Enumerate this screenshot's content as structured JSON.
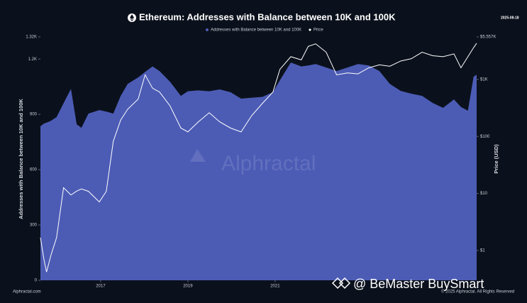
{
  "chart_data": {
    "type": "area",
    "title": "Ethereum: Addresses with Balance between 10K and 100K",
    "date": "2025-08-18",
    "ylabel": "Addresses with Balance between 10K and 100K",
    "y2label": "Price (USD)",
    "watermark": "Alphractal",
    "source": "Alphractal.com",
    "copyright": "© 2025 Alphractal. All Rights Reserved",
    "overlay_text": "@ BeMaster BuySmart",
    "x": [
      2015.62,
      2015.7,
      2015.76,
      2015.86,
      2015.99,
      2016.15,
      2016.32,
      2016.45,
      2016.56,
      2016.72,
      2016.97,
      2017.13,
      2017.29,
      2017.46,
      2017.62,
      2017.86,
      2018.02,
      2018.19,
      2018.35,
      2018.59,
      2018.84,
      2019.0,
      2019.24,
      2019.49,
      2019.73,
      2019.98,
      2020.22,
      2020.46,
      2020.71,
      2020.95,
      2021.11,
      2021.36,
      2021.6,
      2021.76,
      2021.93,
      2022.17,
      2022.41,
      2022.66,
      2022.9,
      2023.15,
      2023.39,
      2023.63,
      2023.88,
      2024.12,
      2024.37,
      2024.61,
      2024.85,
      2025.1,
      2025.26,
      2025.42,
      2025.55,
      2025.62
    ],
    "series": [
      {
        "name": "Addresses with Balance between 10K and 100K",
        "color": "#4c5cb5",
        "axis": "y",
        "values": [
          835,
          850,
          855,
          865,
          885,
          960,
          1038,
          846,
          827,
          904,
          923,
          915,
          904,
          1000,
          1065,
          1100,
          1130,
          1160,
          1135,
          1077,
          1000,
          1025,
          1030,
          1025,
          1035,
          1020,
          985,
          990,
          995,
          1020,
          1085,
          1181,
          1160,
          1165,
          1173,
          1154,
          1135,
          1154,
          1173,
          1165,
          1135,
          1065,
          1027,
          1012,
          1000,
          962,
          935,
          981,
          940,
          920,
          1104,
          1115
        ]
      },
      {
        "name": "Price",
        "color": "#ffffff",
        "axis": "y2",
        "values": [
          1.68,
          0.7,
          0.42,
          0.82,
          1.68,
          12.6,
          9.4,
          11,
          12,
          10.9,
          7.1,
          10.9,
          82,
          194,
          300,
          450,
          1200,
          700,
          600,
          344,
          140,
          120,
          180,
          260,
          180,
          140,
          120,
          230,
          380,
          600,
          1500,
          2500,
          2200,
          3800,
          4200,
          3000,
          1200,
          1300,
          1250,
          1600,
          1800,
          1700,
          2100,
          2300,
          3000,
          2600,
          2500,
          2800,
          1600,
          2500,
          3600,
          4300
        ]
      }
    ],
    "xlim": [
      2015.62,
      2025.62
    ],
    "xticks": [
      2017,
      2019,
      2021
    ],
    "ylim": [
      0,
      1320
    ],
    "yticks": [
      0,
      300,
      600,
      900,
      {
        "value": 1200,
        "label": "1.2K"
      },
      {
        "value": 1320,
        "label": "1.32K"
      }
    ],
    "y2log": true,
    "y2lim": [
      0.3,
      5557
    ],
    "y2ticks": [
      {
        "value": 1,
        "label": "$1"
      },
      {
        "value": 10,
        "label": "$10"
      },
      {
        "value": 100,
        "label": "$100"
      },
      {
        "value": 1000,
        "label": "$1K"
      },
      {
        "value": 5557,
        "label": "$5.557K"
      }
    ]
  }
}
